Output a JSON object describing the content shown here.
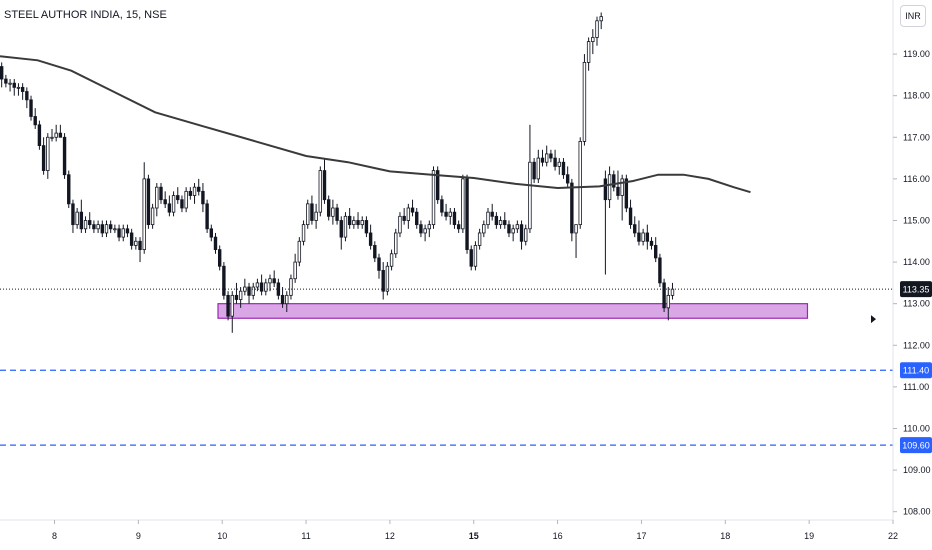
{
  "header": {
    "title": "STEEL AUTHOR INDIA, 15, NSE",
    "currency_button": "INR"
  },
  "colors": {
    "candle_up": "#ffffff",
    "candle_down": "#131722",
    "candle_border": "#131722",
    "moving_average": "#3a3a3a",
    "support_zone_fill": "#d9a6e6",
    "support_zone_border": "#9c27b0",
    "level_line": "#2962ff",
    "last_price_tag": "#131722",
    "price_line": "#131722"
  },
  "chart_data": {
    "type": "candlestick",
    "symbol": "STEEL AUTHOR INDIA",
    "interval": "15",
    "exchange": "NSE",
    "currency": "INR",
    "y_ticks": [
      "119.00",
      "118.00",
      "117.00",
      "116.00",
      "115.00",
      "114.00",
      "113.00",
      "112.00",
      "111.00",
      "110.00",
      "109.00",
      "108.00"
    ],
    "ylim": [
      107.8,
      120.3
    ],
    "x_ticks": [
      {
        "label": "8",
        "x": 0.5
      },
      {
        "label": "9",
        "x": 1.5
      },
      {
        "label": "10",
        "x": 2.5
      },
      {
        "label": "11",
        "x": 3.5
      },
      {
        "label": "12",
        "x": 4.5
      },
      {
        "label": "15",
        "x": 5.5
      },
      {
        "label": "16",
        "x": 6.5
      },
      {
        "label": "17",
        "x": 7.5
      },
      {
        "label": "18",
        "x": 8.5
      },
      {
        "label": "19",
        "x": 9.5
      },
      {
        "label": "22",
        "x": 10.5
      }
    ],
    "xlim": [
      -0.15,
      10.5
    ],
    "bold_x_tick": "15",
    "last_price": {
      "value": 113.35,
      "label": "113.35"
    },
    "levels": [
      {
        "value": 111.4,
        "label": "111.40",
        "style": "dashed"
      },
      {
        "value": 109.6,
        "label": "109.60",
        "style": "dashed"
      }
    ],
    "support_zone": {
      "x_start": 2.45,
      "x_end": 9.48,
      "y_low": 112.65,
      "y_high": 113.0
    },
    "moving_average": [
      [
        -0.15,
        118.95
      ],
      [
        0.3,
        118.85
      ],
      [
        0.7,
        118.6
      ],
      [
        1.2,
        118.1
      ],
      [
        1.7,
        117.6
      ],
      [
        2.3,
        117.25
      ],
      [
        2.9,
        116.9
      ],
      [
        3.5,
        116.55
      ],
      [
        4.0,
        116.4
      ],
      [
        4.5,
        116.18
      ],
      [
        5.0,
        116.1
      ],
      [
        5.5,
        116.02
      ],
      [
        6.0,
        115.88
      ],
      [
        6.5,
        115.78
      ],
      [
        7.0,
        115.82
      ],
      [
        7.4,
        115.95
      ],
      [
        7.7,
        116.1
      ],
      [
        8.0,
        116.1
      ],
      [
        8.3,
        116.0
      ],
      [
        8.6,
        115.8
      ],
      [
        8.8,
        115.68
      ]
    ],
    "candles": [
      [
        -0.13,
        118.7,
        118.8,
        118.2,
        118.4
      ],
      [
        -0.08,
        118.4,
        118.5,
        118.2,
        118.3
      ],
      [
        -0.03,
        118.3,
        118.4,
        118.1,
        118.3
      ],
      [
        0.02,
        118.3,
        118.4,
        118.0,
        118.2
      ],
      [
        0.07,
        118.2,
        118.3,
        118.0,
        118.2
      ],
      [
        0.12,
        118.2,
        118.3,
        117.9,
        118.1
      ],
      [
        0.17,
        118.1,
        118.2,
        117.7,
        117.9
      ],
      [
        0.22,
        117.9,
        118.0,
        117.4,
        117.5
      ],
      [
        0.27,
        117.5,
        117.7,
        117.2,
        117.3
      ],
      [
        0.32,
        117.3,
        117.4,
        116.7,
        116.8
      ],
      [
        0.37,
        116.8,
        117.0,
        116.1,
        116.2
      ],
      [
        0.42,
        116.2,
        117.1,
        116.0,
        117.0
      ],
      [
        0.47,
        117.0,
        117.2,
        116.9,
        117.0
      ],
      [
        0.52,
        117.0,
        117.3,
        116.9,
        117.1
      ],
      [
        0.57,
        117.1,
        117.3,
        117.0,
        117.0
      ],
      [
        0.62,
        117.0,
        117.1,
        116.0,
        116.1
      ],
      [
        0.67,
        116.1,
        116.2,
        115.3,
        115.4
      ],
      [
        0.72,
        115.4,
        115.5,
        114.7,
        114.9
      ],
      [
        0.77,
        114.9,
        115.3,
        114.8,
        115.2
      ],
      [
        0.82,
        115.2,
        115.5,
        114.7,
        114.8
      ],
      [
        0.87,
        114.8,
        115.1,
        114.7,
        115.0
      ],
      [
        0.92,
        115.0,
        115.2,
        114.8,
        114.9
      ],
      [
        0.97,
        114.9,
        115.0,
        114.7,
        114.8
      ],
      [
        1.02,
        114.8,
        115.0,
        114.7,
        114.9
      ],
      [
        1.07,
        114.9,
        115.0,
        114.6,
        114.7
      ],
      [
        1.12,
        114.7,
        115.0,
        114.6,
        114.9
      ],
      [
        1.17,
        114.9,
        115.0,
        114.7,
        114.8
      ],
      [
        1.22,
        114.8,
        114.9,
        114.7,
        114.8
      ],
      [
        1.27,
        114.8,
        114.9,
        114.5,
        114.6
      ],
      [
        1.32,
        114.6,
        114.9,
        114.5,
        114.8
      ],
      [
        1.37,
        114.8,
        114.9,
        114.6,
        114.7
      ],
      [
        1.42,
        114.7,
        114.8,
        114.3,
        114.4
      ],
      [
        1.47,
        114.4,
        114.6,
        114.3,
        114.5
      ],
      [
        1.52,
        114.5,
        114.6,
        114.0,
        114.3
      ],
      [
        1.57,
        114.3,
        116.4,
        114.2,
        116.0
      ],
      [
        1.62,
        116.0,
        116.1,
        114.8,
        114.9
      ],
      [
        1.67,
        114.9,
        115.4,
        114.8,
        115.3
      ],
      [
        1.72,
        115.3,
        115.9,
        115.1,
        115.8
      ],
      [
        1.77,
        115.8,
        115.9,
        115.4,
        115.5
      ],
      [
        1.82,
        115.5,
        115.7,
        115.3,
        115.4
      ],
      [
        1.87,
        115.4,
        115.6,
        115.1,
        115.2
      ],
      [
        1.92,
        115.2,
        115.7,
        115.1,
        115.6
      ],
      [
        1.97,
        115.6,
        115.8,
        115.4,
        115.5
      ],
      [
        2.02,
        115.5,
        115.6,
        115.2,
        115.3
      ],
      [
        2.07,
        115.3,
        115.8,
        115.2,
        115.7
      ],
      [
        2.12,
        115.7,
        115.8,
        115.5,
        115.6
      ],
      [
        2.17,
        115.6,
        115.9,
        115.4,
        115.8
      ],
      [
        2.22,
        115.8,
        116.0,
        115.6,
        115.7
      ],
      [
        2.27,
        115.7,
        115.9,
        115.2,
        115.4
      ],
      [
        2.32,
        115.4,
        115.5,
        114.7,
        114.8
      ],
      [
        2.37,
        114.8,
        114.9,
        114.5,
        114.6
      ],
      [
        2.42,
        114.6,
        114.7,
        114.2,
        114.3
      ],
      [
        2.47,
        114.3,
        114.4,
        113.8,
        113.9
      ],
      [
        2.52,
        113.9,
        114.0,
        113.1,
        113.2
      ],
      [
        2.57,
        113.2,
        113.3,
        112.6,
        112.7
      ],
      [
        2.62,
        112.7,
        113.3,
        112.3,
        113.2
      ],
      [
        2.67,
        113.2,
        113.5,
        113.0,
        113.1
      ],
      [
        2.72,
        113.1,
        113.4,
        112.9,
        113.3
      ],
      [
        2.77,
        113.3,
        113.6,
        113.2,
        113.4
      ],
      [
        2.82,
        113.4,
        113.5,
        113.0,
        113.2
      ],
      [
        2.87,
        113.2,
        113.5,
        113.1,
        113.4
      ],
      [
        2.92,
        113.4,
        113.6,
        113.3,
        113.5
      ],
      [
        2.97,
        113.5,
        113.7,
        113.2,
        113.3
      ],
      [
        3.02,
        113.3,
        113.6,
        113.2,
        113.5
      ],
      [
        3.07,
        113.5,
        113.7,
        113.3,
        113.6
      ],
      [
        3.12,
        113.6,
        113.8,
        113.4,
        113.5
      ],
      [
        3.17,
        113.5,
        113.6,
        113.1,
        113.2
      ],
      [
        3.22,
        113.2,
        113.4,
        112.9,
        113.0
      ],
      [
        3.27,
        113.0,
        113.3,
        112.8,
        113.2
      ],
      [
        3.32,
        113.2,
        113.7,
        113.1,
        113.6
      ],
      [
        3.37,
        113.6,
        114.2,
        113.5,
        114.0
      ],
      [
        3.42,
        114.0,
        114.6,
        113.9,
        114.5
      ],
      [
        3.47,
        114.5,
        115.0,
        114.4,
        114.9
      ],
      [
        3.52,
        114.9,
        115.5,
        114.8,
        115.4
      ],
      [
        3.57,
        115.4,
        115.6,
        114.9,
        115.0
      ],
      [
        3.62,
        115.0,
        115.4,
        114.8,
        115.2
      ],
      [
        3.67,
        115.2,
        116.3,
        115.1,
        116.2
      ],
      [
        3.72,
        116.2,
        116.5,
        115.4,
        115.5
      ],
      [
        3.77,
        115.5,
        115.6,
        115.0,
        115.1
      ],
      [
        3.82,
        115.1,
        115.5,
        114.9,
        115.3
      ],
      [
        3.87,
        115.3,
        115.4,
        114.9,
        115.0
      ],
      [
        3.92,
        115.0,
        115.1,
        114.3,
        114.6
      ],
      [
        3.97,
        114.6,
        115.2,
        114.5,
        115.1
      ],
      [
        4.02,
        115.1,
        115.3,
        114.8,
        114.9
      ],
      [
        4.07,
        114.9,
        115.1,
        114.8,
        115.0
      ],
      [
        4.12,
        115.0,
        115.2,
        114.8,
        114.9
      ],
      [
        4.17,
        114.9,
        115.1,
        114.8,
        115.0
      ],
      [
        4.22,
        115.0,
        115.1,
        114.6,
        114.7
      ],
      [
        4.27,
        114.7,
        114.9,
        114.3,
        114.4
      ],
      [
        4.32,
        114.4,
        114.5,
        114.0,
        114.1
      ],
      [
        4.37,
        114.1,
        114.2,
        113.6,
        113.8
      ],
      [
        4.42,
        113.8,
        114.0,
        113.1,
        113.3
      ],
      [
        4.47,
        113.3,
        114.0,
        113.2,
        113.9
      ],
      [
        4.52,
        113.9,
        114.3,
        113.8,
        114.2
      ],
      [
        4.57,
        114.2,
        114.8,
        114.1,
        114.7
      ],
      [
        4.62,
        114.7,
        115.2,
        114.6,
        115.1
      ],
      [
        4.67,
        115.1,
        115.3,
        114.9,
        115.0
      ],
      [
        4.72,
        115.0,
        115.4,
        114.8,
        115.3
      ],
      [
        4.77,
        115.3,
        115.5,
        115.1,
        115.2
      ],
      [
        4.82,
        115.2,
        115.3,
        114.8,
        114.9
      ],
      [
        4.87,
        114.9,
        115.0,
        114.6,
        114.7
      ],
      [
        4.92,
        114.7,
        114.9,
        114.5,
        114.8
      ],
      [
        4.97,
        114.8,
        115.0,
        114.6,
        114.9
      ],
      [
        5.02,
        114.9,
        116.3,
        114.8,
        116.2
      ],
      [
        5.07,
        116.2,
        116.3,
        115.4,
        115.5
      ],
      [
        5.12,
        115.5,
        115.6,
        115.1,
        115.2
      ],
      [
        5.17,
        115.2,
        115.4,
        115.0,
        115.1
      ],
      [
        5.22,
        115.1,
        115.3,
        114.9,
        115.2
      ],
      [
        5.27,
        115.2,
        115.3,
        114.8,
        114.9
      ],
      [
        5.32,
        114.9,
        115.0,
        114.7,
        114.8
      ],
      [
        5.37,
        114.8,
        116.1,
        114.7,
        116.0
      ],
      [
        5.42,
        116.0,
        116.1,
        114.2,
        114.3
      ],
      [
        5.47,
        114.3,
        114.4,
        113.8,
        113.9
      ],
      [
        5.52,
        113.9,
        114.5,
        113.8,
        114.4
      ],
      [
        5.57,
        114.4,
        114.8,
        114.3,
        114.7
      ],
      [
        5.62,
        114.7,
        115.0,
        114.6,
        114.9
      ],
      [
        5.67,
        114.9,
        115.3,
        114.8,
        115.2
      ],
      [
        5.72,
        115.2,
        115.4,
        115.0,
        115.1
      ],
      [
        5.77,
        115.1,
        115.2,
        114.8,
        114.9
      ],
      [
        5.82,
        114.9,
        115.1,
        114.8,
        115.0
      ],
      [
        5.87,
        115.0,
        115.2,
        114.8,
        114.9
      ],
      [
        5.92,
        114.9,
        115.0,
        114.6,
        114.7
      ],
      [
        5.97,
        114.7,
        114.9,
        114.5,
        114.8
      ],
      [
        6.02,
        114.8,
        115.0,
        114.7,
        114.9
      ],
      [
        6.07,
        114.9,
        115.0,
        114.3,
        114.5
      ],
      [
        6.12,
        114.5,
        114.9,
        114.4,
        114.8
      ],
      [
        6.17,
        114.8,
        117.3,
        114.7,
        116.4
      ],
      [
        6.22,
        116.4,
        116.5,
        115.9,
        116.0
      ],
      [
        6.27,
        116.0,
        116.7,
        115.9,
        116.5
      ],
      [
        6.32,
        116.5,
        116.7,
        116.3,
        116.4
      ],
      [
        6.37,
        116.4,
        116.8,
        116.3,
        116.6
      ],
      [
        6.42,
        116.6,
        116.7,
        116.4,
        116.5
      ],
      [
        6.47,
        116.5,
        116.7,
        116.2,
        116.3
      ],
      [
        6.52,
        116.3,
        116.5,
        116.1,
        116.4
      ],
      [
        6.57,
        116.4,
        116.5,
        116.0,
        116.1
      ],
      [
        6.62,
        116.1,
        116.3,
        115.8,
        115.9
      ],
      [
        6.67,
        115.9,
        116.0,
        114.5,
        114.7
      ],
      [
        6.72,
        114.7,
        114.8,
        114.1,
        114.9
      ],
      [
        6.77,
        114.9,
        117.0,
        114.8,
        116.9
      ],
      [
        6.82,
        116.9,
        119.0,
        116.8,
        118.8
      ],
      [
        6.87,
        118.8,
        119.4,
        118.6,
        119.3
      ],
      [
        6.92,
        119.3,
        119.6,
        119.0,
        119.4
      ],
      [
        6.97,
        119.4,
        119.9,
        119.2,
        119.8
      ],
      [
        7.02,
        119.8,
        120.0,
        119.6,
        119.9
      ],
      [
        7.07,
        116.0,
        116.2,
        113.7,
        115.5
      ],
      [
        7.12,
        115.5,
        116.3,
        115.3,
        116.1
      ],
      [
        7.17,
        116.1,
        116.2,
        115.7,
        115.8
      ],
      [
        7.22,
        115.8,
        116.2,
        115.5,
        115.6
      ],
      [
        7.27,
        115.6,
        116.1,
        115.0,
        116.0
      ],
      [
        7.32,
        116.0,
        116.1,
        115.2,
        115.3
      ],
      [
        7.37,
        115.3,
        115.5,
        114.8,
        114.9
      ],
      [
        7.42,
        114.9,
        115.1,
        114.6,
        114.7
      ],
      [
        7.47,
        114.7,
        115.0,
        114.4,
        114.5
      ],
      [
        7.52,
        114.5,
        114.8,
        114.4,
        114.7
      ],
      [
        7.57,
        114.7,
        114.9,
        114.3,
        114.5
      ],
      [
        7.62,
        114.5,
        114.6,
        114.3,
        114.4
      ],
      [
        7.67,
        114.4,
        114.6,
        114.0,
        114.1
      ],
      [
        7.72,
        114.1,
        114.2,
        113.4,
        113.5
      ],
      [
        7.77,
        113.5,
        113.6,
        112.8,
        112.9
      ],
      [
        7.82,
        112.9,
        113.4,
        112.6,
        113.2
      ],
      [
        7.87,
        113.2,
        113.5,
        113.1,
        113.35
      ]
    ]
  }
}
